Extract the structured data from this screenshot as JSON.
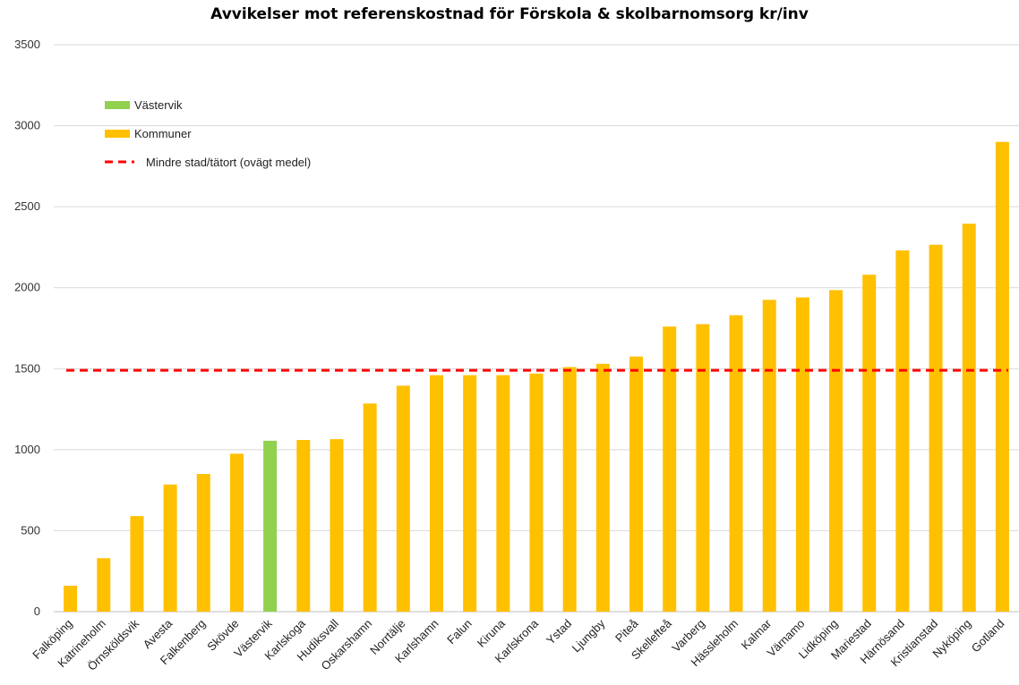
{
  "chart_data": {
    "type": "bar",
    "title": "Avvikelser mot referenskostnad för Förskola & skolbarnomsorg kr/inv",
    "xlabel": "",
    "ylabel": "",
    "ylim": [
      0,
      3500
    ],
    "yticks": [
      0,
      500,
      1000,
      1500,
      2000,
      2500,
      3000,
      3500
    ],
    "grid": true,
    "legend_position": "top-left",
    "categories": [
      "Falköping",
      "Katrineholm",
      "Örnsköldsvik",
      "Avesta",
      "Falkenberg",
      "Skövde",
      "Västervik",
      "Karlskoga",
      "Hudiksvall",
      "Oskarshamn",
      "Norrtälje",
      "Karlshamn",
      "Falun",
      "Kiruna",
      "Karlskrona",
      "Ystad",
      "Ljungby",
      "Piteå",
      "Skellefteå",
      "Varberg",
      "Hässleholm",
      "Kalmar",
      "Värnamo",
      "Lidköping",
      "Mariestad",
      "Härnösand",
      "Kristianstad",
      "Nyköping",
      "Gotland"
    ],
    "values": [
      160,
      330,
      590,
      785,
      850,
      975,
      1055,
      1060,
      1065,
      1285,
      1395,
      1460,
      1460,
      1460,
      1470,
      1510,
      1530,
      1575,
      1760,
      1775,
      1830,
      1925,
      1940,
      1985,
      2080,
      2230,
      2265,
      2395,
      2900
    ],
    "highlight_category": "Västervik",
    "reference_line": {
      "name": "Mindre stad/tätort (ovägt medel)",
      "value": 1490,
      "color": "#ff0000",
      "style": "dashed"
    },
    "series": [
      {
        "name": "Västervik",
        "color": "#92d050"
      },
      {
        "name": "Kommuner",
        "color": "#ffc000"
      }
    ],
    "colors": {
      "highlight": "#92d050",
      "default": "#ffc000",
      "grid": "#d9d9d9",
      "reference": "#ff0000"
    }
  }
}
